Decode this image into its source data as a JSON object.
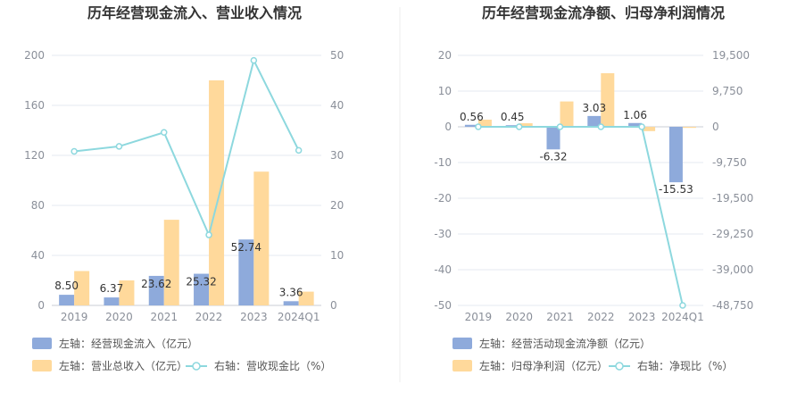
{
  "chart_data": [
    {
      "type": "bar",
      "title": "历年经营现金流入、营业收入情况",
      "categories": [
        "2019",
        "2020",
        "2021",
        "2022",
        "2023",
        "2024Q1"
      ],
      "y_left": {
        "ticks": [
          "0",
          "40",
          "80",
          "120",
          "160",
          "200"
        ],
        "range": [
          0,
          200
        ]
      },
      "y_right": {
        "ticks": [
          "0",
          "10",
          "20",
          "30",
          "40",
          "50"
        ],
        "range": [
          0,
          50
        ]
      },
      "grid": true,
      "legend_position": "bottom",
      "series": [
        {
          "name": "左轴：经营现金流入（亿元）",
          "type": "bar",
          "axis": "left",
          "color": "#8eaadb",
          "values": [
            8.5,
            6.37,
            23.62,
            25.32,
            52.74,
            3.36
          ],
          "labels": [
            "8.50",
            "6.37",
            "23.62",
            "25.32",
            "52.74",
            "3.36"
          ]
        },
        {
          "name": "左轴：营业总收入（亿元）",
          "type": "bar",
          "axis": "left",
          "color": "#ffd99b",
          "values": [
            27.5,
            20.0,
            68.5,
            180.0,
            107.0,
            11.0
          ]
        },
        {
          "name": "右轴：营收现金比（%）",
          "type": "line",
          "axis": "right",
          "color": "#8dd8de",
          "values": [
            30.8,
            31.8,
            34.6,
            14.1,
            49.0,
            31.0
          ]
        }
      ]
    },
    {
      "type": "bar",
      "title": "历年经营现金流净额、归母净利润情况",
      "categories": [
        "2019",
        "2020",
        "2021",
        "2022",
        "2023",
        "2024Q1"
      ],
      "y_left": {
        "ticks": [
          "-50",
          "-40",
          "-30",
          "-20",
          "-10",
          "0",
          "10",
          "20"
        ],
        "range": [
          -50,
          20
        ]
      },
      "y_right": {
        "ticks": [
          "-48,750",
          "-39,000",
          "-29,250",
          "-19,500",
          "-9,750",
          "0",
          "9,750",
          "19,500"
        ],
        "range": [
          -48750,
          19500
        ]
      },
      "grid": true,
      "legend_position": "bottom",
      "series": [
        {
          "name": "左轴：经营活动现金流净额（亿元）",
          "type": "bar",
          "axis": "left",
          "color": "#8eaadb",
          "values": [
            0.56,
            0.45,
            -6.32,
            3.03,
            1.06,
            -15.53
          ],
          "labels": [
            "0.56",
            "0.45",
            "-6.32",
            "3.03",
            "1.06",
            "-15.53"
          ]
        },
        {
          "name": "左轴：归母净利润（亿元）",
          "type": "bar",
          "axis": "left",
          "color": "#ffd99b",
          "values": [
            2.0,
            1.0,
            7.1,
            15.0,
            -1.2,
            -0.3
          ]
        },
        {
          "name": "右轴：净现比（%）",
          "type": "line",
          "axis": "right",
          "color": "#8dd8de",
          "values": [
            0,
            0,
            0,
            0,
            0,
            -48750
          ]
        }
      ]
    }
  ]
}
